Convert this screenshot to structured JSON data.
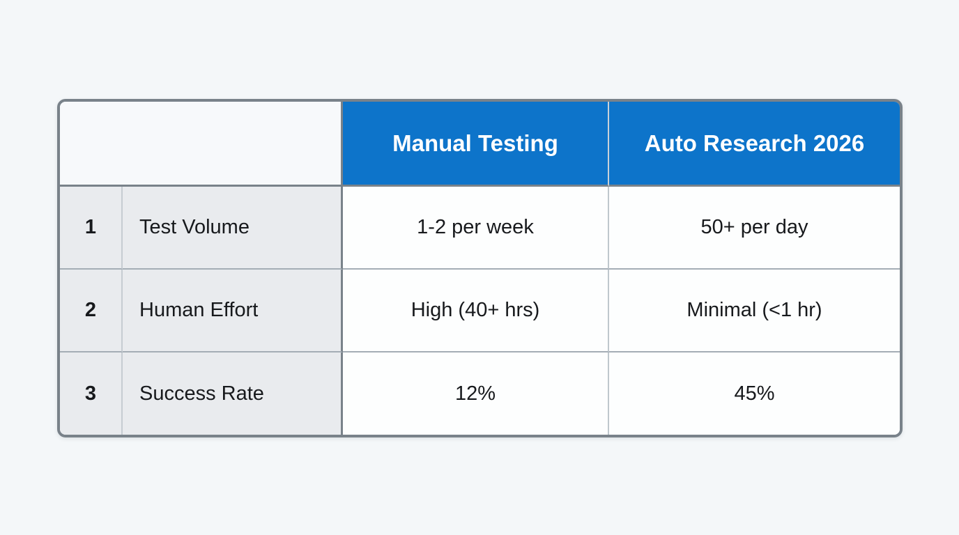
{
  "chart_data": {
    "type": "table",
    "columns": [
      "",
      "Manual Testing",
      "Auto Research 2026"
    ],
    "rows": [
      {
        "num": "1",
        "metric": "Test Volume",
        "manual_testing": "1-2 per week",
        "auto_research_2026": "50+ per day"
      },
      {
        "num": "2",
        "metric": "Human Effort",
        "manual_testing": "High (40+ hrs)",
        "auto_research_2026": "Minimal (<1 hr)"
      },
      {
        "num": "3",
        "metric": "Success Rate",
        "manual_testing": "12%",
        "auto_research_2026": "45%"
      }
    ],
    "layout": "comparison table, 3 rows, header row blue, label column gray, data cells white"
  },
  "colors": {
    "header_blue": "#0d74ca",
    "header_text": "#ffffff",
    "border_dark": "#79828a",
    "divider_light": "#c6ccd2",
    "row_divider": "#a4adb5",
    "label_cell_bg": "#e9ebee",
    "data_cell_bg": "#fdfefe",
    "corner_cell_bg": "#f7f9fb",
    "page_bg": "#f4f7f9",
    "body_text": "#17191c"
  }
}
